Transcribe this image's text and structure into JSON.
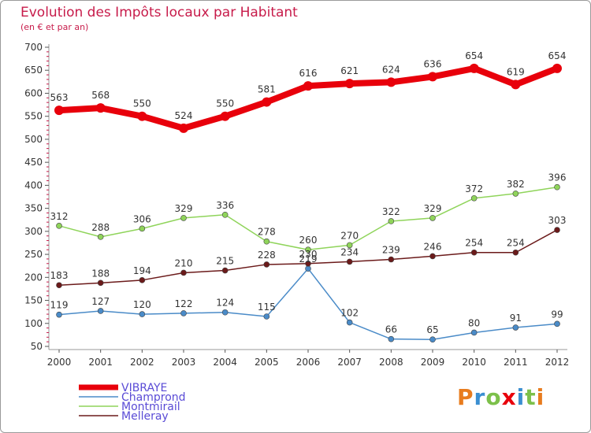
{
  "title": "Evolution des Impôts locaux par Habitant",
  "subtitle": "(en € et par an)",
  "logo": "Proxiti",
  "chart_data": {
    "type": "line",
    "x": [
      "2000",
      "2001",
      "2002",
      "2003",
      "2004",
      "2005",
      "2006",
      "2007",
      "2008",
      "2009",
      "2010",
      "2011",
      "2012"
    ],
    "yticks": [
      50,
      100,
      150,
      200,
      250,
      300,
      350,
      400,
      450,
      500,
      550,
      600,
      650,
      700
    ],
    "ylim": [
      50,
      700
    ],
    "grid": false,
    "legend_position": "bottom-left",
    "series": [
      {
        "name": "VIBRAYE",
        "color": "#e8000b",
        "values": [
          563,
          568,
          550,
          524,
          550,
          581,
          616,
          621,
          624,
          636,
          654,
          619,
          654
        ]
      },
      {
        "name": "Champrond",
        "color": "#4a8bc8",
        "values": [
          119,
          127,
          120,
          122,
          124,
          115,
          219,
          102,
          66,
          65,
          80,
          91,
          99
        ]
      },
      {
        "name": "Montmirail",
        "color": "#8fd45a",
        "values": [
          312,
          288,
          306,
          329,
          336,
          278,
          260,
          270,
          322,
          329,
          372,
          382,
          396
        ]
      },
      {
        "name": "Melleray",
        "color": "#6b1a1a",
        "values": [
          183,
          188,
          194,
          210,
          215,
          228,
          230,
          234,
          239,
          246,
          254,
          254,
          303
        ]
      }
    ]
  }
}
